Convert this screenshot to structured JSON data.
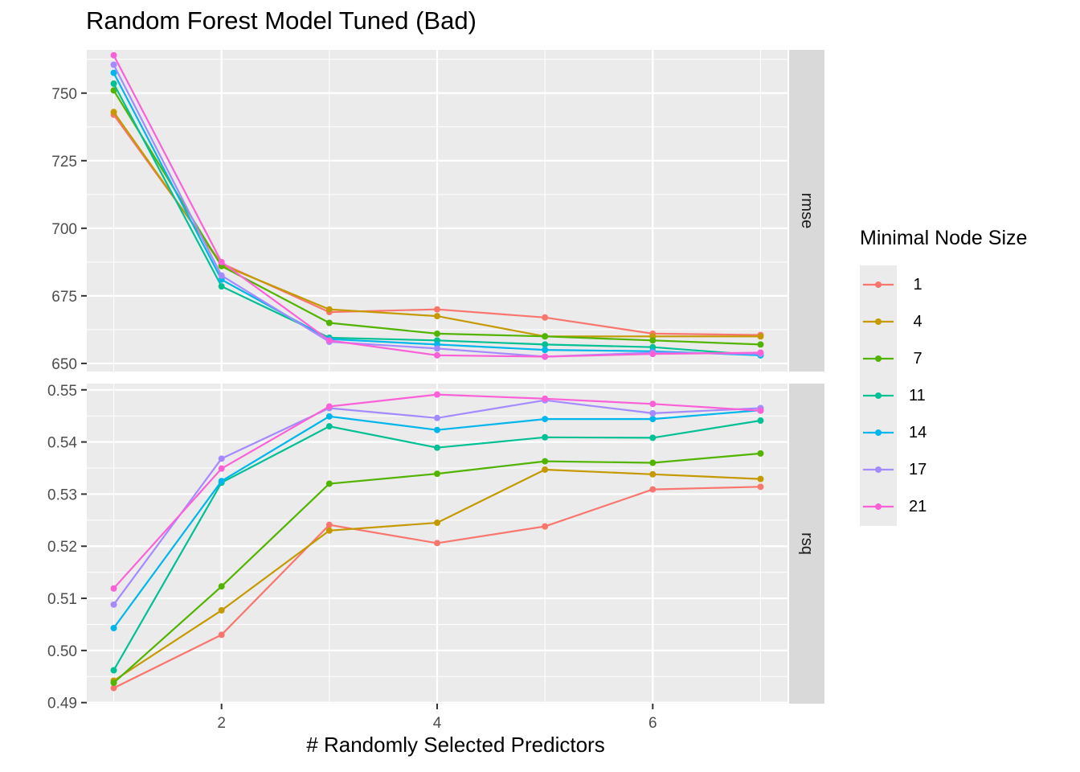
{
  "chart_data": {
    "type": "line",
    "title": "Random Forest Model Tuned (Bad)",
    "xlabel": "# Randomly Selected Predictors",
    "x": [
      1,
      2,
      3,
      4,
      5,
      6,
      7
    ],
    "x_ticks": [
      2,
      4,
      6
    ],
    "xlim": [
      0.75,
      7.25
    ],
    "legend_title": "Minimal Node Size",
    "legend_position": "right",
    "panels": [
      {
        "strip": "rmse",
        "ylim": [
          647,
          766
        ],
        "y_ticks": [
          650,
          675,
          700,
          725,
          750
        ],
        "series": [
          {
            "name": "1",
            "color": "#F8766D",
            "values": [
              742.0,
              687.0,
              669.0,
              670.0,
              667.0,
              661.0,
              660.5
            ]
          },
          {
            "name": "4",
            "color": "#C49A00",
            "values": [
              743.0,
              686.5,
              670.0,
              667.5,
              660.0,
              660.0,
              660.0
            ]
          },
          {
            "name": "7",
            "color": "#53B400",
            "values": [
              751.0,
              686.0,
              665.0,
              661.0,
              660.0,
              658.5,
              657.0
            ]
          },
          {
            "name": "11",
            "color": "#00C094",
            "values": [
              753.5,
              678.5,
              659.5,
              658.5,
              657.0,
              656.0,
              653.0
            ]
          },
          {
            "name": "14",
            "color": "#00B6EB",
            "values": [
              757.5,
              681.0,
              659.0,
              657.0,
              655.0,
              654.5,
              653.0
            ]
          },
          {
            "name": "17",
            "color": "#A58AFF",
            "values": [
              760.5,
              682.5,
              658.0,
              655.5,
              652.5,
              654.0,
              653.5
            ]
          },
          {
            "name": "21",
            "color": "#FB61D7",
            "values": [
              764.0,
              687.5,
              658.5,
              653.0,
              652.5,
              653.5,
              654.0
            ]
          }
        ]
      },
      {
        "strip": "rsq",
        "ylim": [
          0.4898,
          0.5512
        ],
        "y_ticks": [
          0.49,
          0.5,
          0.51,
          0.52,
          0.53,
          0.54,
          0.55
        ],
        "y_tick_labels": [
          "0.49",
          "0.50",
          "0.51",
          "0.52",
          "0.53",
          "0.54",
          "0.55"
        ],
        "series": [
          {
            "name": "1",
            "color": "#F8766D",
            "values": [
              0.4928,
              0.503,
              0.5241,
              0.5206,
              0.5238,
              0.5309,
              0.5314
            ]
          },
          {
            "name": "4",
            "color": "#C49A00",
            "values": [
              0.4942,
              0.5077,
              0.523,
              0.5245,
              0.5347,
              0.5338,
              0.5329
            ]
          },
          {
            "name": "7",
            "color": "#53B400",
            "values": [
              0.4938,
              0.5123,
              0.532,
              0.5339,
              0.5363,
              0.536,
              0.5378
            ]
          },
          {
            "name": "11",
            "color": "#00C094",
            "values": [
              0.4962,
              0.5322,
              0.543,
              0.5389,
              0.5409,
              0.5408,
              0.5441
            ]
          },
          {
            "name": "14",
            "color": "#00B6EB",
            "values": [
              0.5043,
              0.5325,
              0.5449,
              0.5423,
              0.5444,
              0.5444,
              0.5461
            ]
          },
          {
            "name": "17",
            "color": "#A58AFF",
            "values": [
              0.5088,
              0.5368,
              0.5465,
              0.5446,
              0.548,
              0.5455,
              0.5465
            ]
          },
          {
            "name": "21",
            "color": "#FB61D7",
            "values": [
              0.5119,
              0.5349,
              0.5468,
              0.5491,
              0.5483,
              0.5473,
              0.546
            ]
          }
        ]
      }
    ]
  }
}
